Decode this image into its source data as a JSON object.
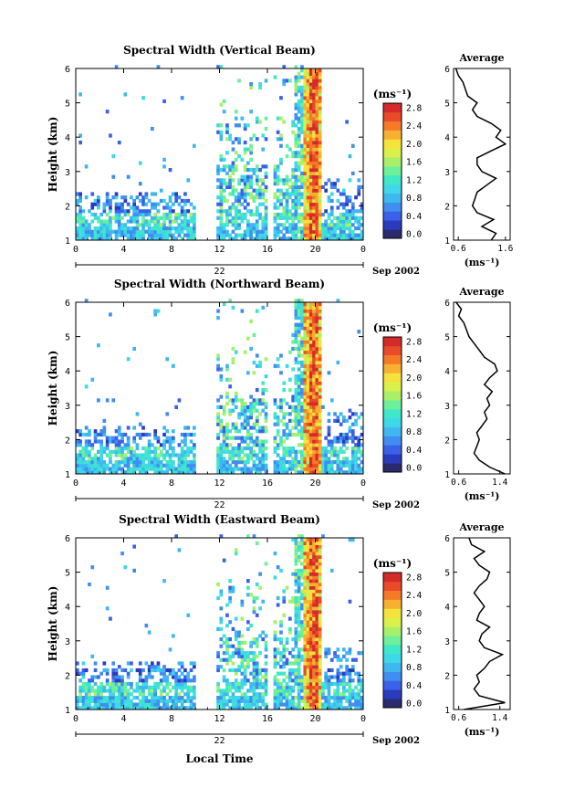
{
  "figure": {
    "date_label": "Sep 2002",
    "day_label": "22",
    "x_axis_title": "Local Time",
    "colorbar_unit": "(ms⁻¹)",
    "profile_title": "Average",
    "profile_xlabel": "(ms⁻¹)",
    "y_axis_title": "Height (km)"
  },
  "colors": {
    "scale": [
      "#2a2a6e",
      "#2b3bbd",
      "#3a62e8",
      "#3f8ef0",
      "#3fb8f0",
      "#3fd8e8",
      "#3fe8c8",
      "#6ef09a",
      "#a8f06a",
      "#dcf04a",
      "#f5e23a",
      "#f8b030",
      "#f57a28",
      "#e84a2a",
      "#d42a2a"
    ],
    "background": "#ffffff"
  },
  "chart_data": [
    {
      "type": "heatmap",
      "title": "Spectral Width (Vertical Beam)",
      "ylabel": "Height (km)",
      "xlabel": "",
      "x_ticks": [
        "0",
        "4",
        "8",
        "12",
        "16",
        "20",
        "0"
      ],
      "y_ticks": [
        "1",
        "2",
        "3",
        "4",
        "5",
        "6"
      ],
      "xlim": [
        0,
        24
      ],
      "ylim": [
        1,
        6
      ],
      "colorbar_ticks": [
        "0.0",
        "0.4",
        "0.8",
        "1.2",
        "1.6",
        "2.0",
        "2.4",
        "2.8"
      ],
      "colorbar_range": [
        0.0,
        3.0
      ],
      "profile": {
        "title": "Average",
        "x_ticks": [
          "0.6",
          "1.6"
        ],
        "xlim": [
          0.5,
          1.7
        ],
        "heights": [
          1.0,
          1.2,
          1.4,
          1.6,
          1.8,
          2.0,
          2.2,
          2.4,
          2.6,
          2.8,
          3.0,
          3.2,
          3.4,
          3.6,
          3.8,
          4.0,
          4.2,
          4.4,
          4.6,
          4.8,
          5.0,
          5.2,
          5.4,
          5.6,
          5.8,
          6.0
        ],
        "values": [
          1.3,
          1.4,
          1.1,
          1.35,
          1.0,
          0.9,
          0.95,
          1.0,
          1.2,
          1.4,
          1.1,
          1.0,
          1.0,
          1.3,
          1.6,
          1.4,
          1.5,
          1.3,
          1.0,
          0.9,
          1.0,
          0.8,
          0.75,
          0.7,
          0.6,
          0.55
        ]
      }
    },
    {
      "type": "heatmap",
      "title": "Spectral Width (Northward Beam)",
      "ylabel": "Height (km)",
      "xlabel": "",
      "x_ticks": [
        "0",
        "4",
        "8",
        "12",
        "16",
        "20",
        "0"
      ],
      "y_ticks": [
        "1",
        "2",
        "3",
        "4",
        "5",
        "6"
      ],
      "xlim": [
        0,
        24
      ],
      "ylim": [
        1,
        6
      ],
      "colorbar_ticks": [
        "0.0",
        "0.4",
        "0.8",
        "1.2",
        "1.6",
        "2.0",
        "2.4",
        "2.8"
      ],
      "colorbar_range": [
        0.0,
        3.0
      ],
      "profile": {
        "title": "Average",
        "x_ticks": [
          "0.6",
          "1.4"
        ],
        "xlim": [
          0.5,
          1.6
        ],
        "heights": [
          1.0,
          1.2,
          1.4,
          1.6,
          1.8,
          2.0,
          2.2,
          2.4,
          2.6,
          2.8,
          3.0,
          3.2,
          3.4,
          3.6,
          3.8,
          4.0,
          4.2,
          4.4,
          4.6,
          4.8,
          5.0,
          5.2,
          5.4,
          5.6,
          5.8,
          6.0
        ],
        "values": [
          1.5,
          1.2,
          1.0,
          0.9,
          0.95,
          1.0,
          0.95,
          1.05,
          1.15,
          1.1,
          1.2,
          1.15,
          1.25,
          1.1,
          1.2,
          1.35,
          1.3,
          1.1,
          1.0,
          0.9,
          0.8,
          0.75,
          0.7,
          0.6,
          0.65,
          0.55
        ]
      }
    },
    {
      "type": "heatmap",
      "title": "Spectral Width (Eastward Beam)",
      "ylabel": "Height (km)",
      "xlabel": "Local Time",
      "x_ticks": [
        "0",
        "4",
        "8",
        "12",
        "16",
        "20",
        "0"
      ],
      "y_ticks": [
        "1",
        "2",
        "3",
        "4",
        "5",
        "6"
      ],
      "xlim": [
        0,
        24
      ],
      "ylim": [
        1,
        6
      ],
      "colorbar_ticks": [
        "0.0",
        "0.4",
        "0.8",
        "1.2",
        "1.6",
        "2.0",
        "2.4",
        "2.8"
      ],
      "colorbar_range": [
        0.0,
        3.0
      ],
      "profile": {
        "title": "Average",
        "x_ticks": [
          "0.6",
          "1.4"
        ],
        "xlim": [
          0.5,
          1.6
        ],
        "heights": [
          1.0,
          1.2,
          1.4,
          1.6,
          1.8,
          2.0,
          2.2,
          2.4,
          2.6,
          2.8,
          3.0,
          3.2,
          3.4,
          3.6,
          3.8,
          4.0,
          4.2,
          4.4,
          4.6,
          4.8,
          5.0,
          5.2,
          5.4,
          5.6,
          5.8,
          6.0
        ],
        "values": [
          0.7,
          1.5,
          1.0,
          0.9,
          1.0,
          0.95,
          1.1,
          1.2,
          1.45,
          1.1,
          1.0,
          1.05,
          1.2,
          0.95,
          1.0,
          1.1,
          1.0,
          0.9,
          1.0,
          1.15,
          1.2,
          1.0,
          0.9,
          1.1,
          0.85,
          0.8
        ]
      }
    }
  ]
}
